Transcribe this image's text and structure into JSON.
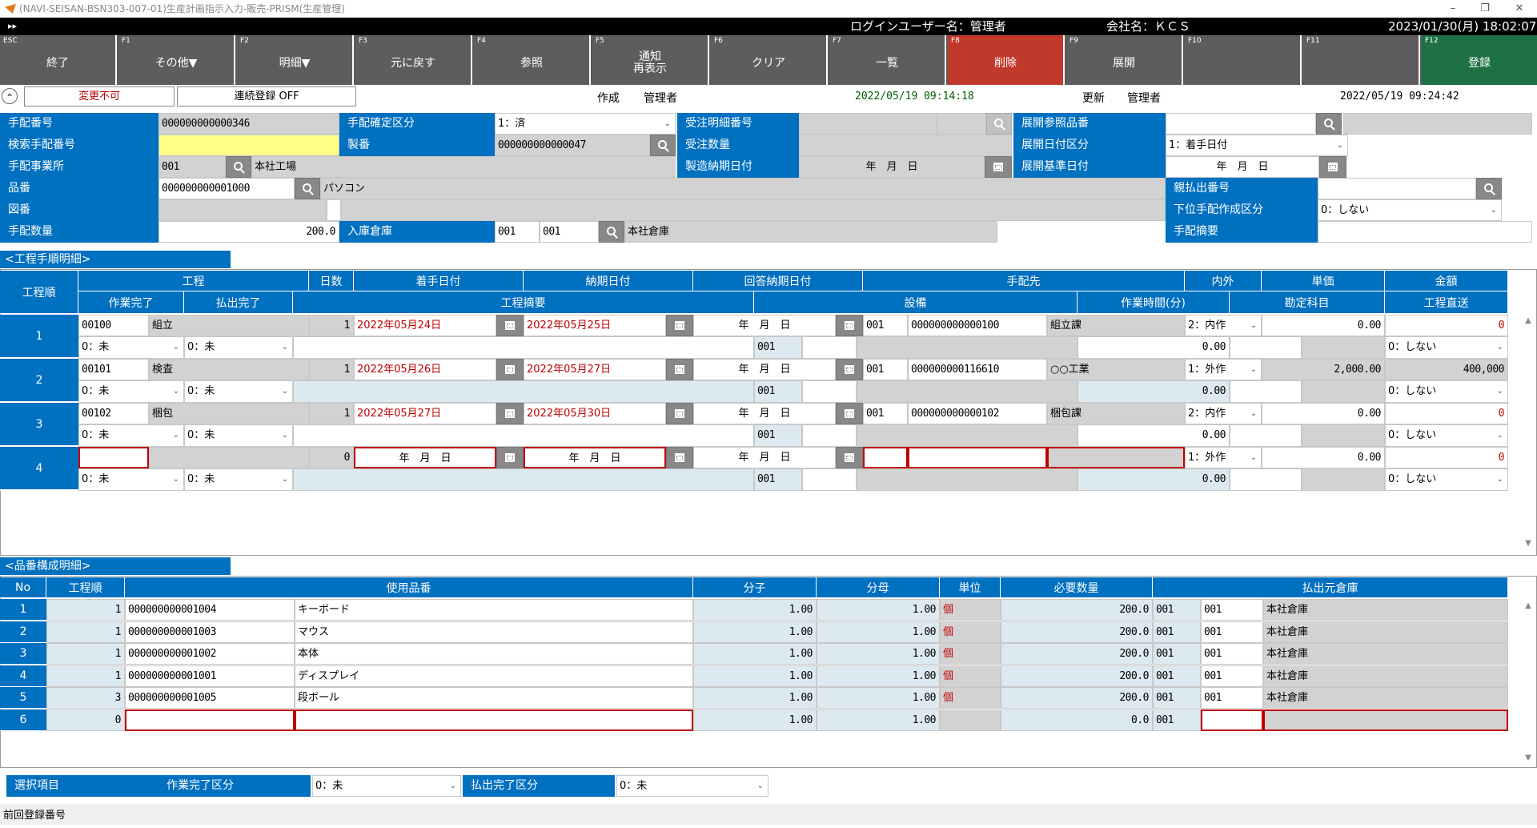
{
  "window": {
    "title": "(NAVI-SEISAN-BSN303-007-01)生産計画指示入力-販売-PRISM(生産管理)",
    "min": "–",
    "max": "❐",
    "close": "✕"
  },
  "infobar": {
    "arrow": "▸▸",
    "login_user": "ログインユーザー名：管理者",
    "company": "会社名：ＫＣＳ",
    "datetime": "2023/01/30(月) 18:02:07"
  },
  "fkeys": [
    {
      "key": "ESC",
      "label": "終了"
    },
    {
      "key": "F1",
      "label": "その他▼"
    },
    {
      "key": "F2",
      "label": "明細▼"
    },
    {
      "key": "F3",
      "label": "元に戻す"
    },
    {
      "key": "F4",
      "label": "参照"
    },
    {
      "key": "F5",
      "label": "通知\n再表示"
    },
    {
      "key": "F6",
      "label": "クリア"
    },
    {
      "key": "F7",
      "label": "一覧"
    },
    {
      "key": "F8",
      "label": "削除"
    },
    {
      "key": "F9",
      "label": "展開"
    },
    {
      "key": "F10",
      "label": ""
    },
    {
      "key": "F11",
      "label": ""
    },
    {
      "key": "F12",
      "label": "登録"
    }
  ],
  "colors": {
    "blue": "#0070c0",
    "delete": "#c0392b",
    "register": "#1e7145",
    "fkey": "#5d5d5d",
    "yellow": "#ffff88"
  },
  "status": {
    "collapse_icon": "⌃",
    "henko": "変更不可",
    "renzoku": "連続登録 OFF",
    "created_label": "作成",
    "created_by": "管理者",
    "created_at": "2022/05/19 09:14:18",
    "updated_label": "更新",
    "updated_by": "管理者",
    "updated_at": "2022/05/19 09:24:42"
  },
  "header": {
    "tehai_no_label": "手配番号",
    "tehai_no": "000000000000346",
    "kakutei_label": "手配確定区分",
    "kakutei": "1：済",
    "juchu_meisai_label": "受注明細番号",
    "juchu_meisai": "",
    "tenkai_sansho_label": "展開参照品番",
    "tenkai_sansho": "",
    "kensaku_label": "検索手配番号",
    "kensaku": "",
    "seiban_label": "製番",
    "seiban": "000000000000047",
    "juchu_su_label": "受注数量",
    "juchu_su": "",
    "tenkai_kubun_label": "展開日付区分",
    "tenkai_kubun": "1：着手日付",
    "jigyosho_label": "手配事業所",
    "jigyosho_code": "001",
    "jigyosho_name": "本社工場",
    "seizo_nouki_label": "製造納期日付",
    "seizo_nouki": "年　月　日",
    "tenkai_kijun_label": "展開基準日付",
    "tenkai_kijun": "年　月　日",
    "hinban_label": "品番",
    "hinban": "000000000001000",
    "hinmei": "パソコン",
    "oya_label": "親払出番号",
    "oya": "",
    "zuban_label": "図番",
    "zuban": "",
    "kai_label": "下位手配作成区分",
    "kai": "0：しない",
    "suryo_label": "手配数量",
    "suryo": "200.0",
    "soko_label": "入庫倉庫",
    "soko_code1": "001",
    "soko_code2": "001",
    "soko_name": "本社倉庫",
    "tekiyo_label": "手配摘要",
    "tekiyo": ""
  },
  "process": {
    "title": "<工程手順明細>",
    "headers": {
      "kojun": "工程順",
      "kotei": "工程",
      "nissu": "日数",
      "chakushu": "着手日付",
      "nouki": "納期日付",
      "kaito": "回答納期日付",
      "tehaisaki": "手配先",
      "naigai": "内外",
      "tanka": "単価",
      "kingaku": "金額",
      "sagyo_kanryo": "作業完了",
      "haraidashi": "払出完了",
      "tekiyo": "工程摘要",
      "setsubi": "設備",
      "sagyo_jikan": "作業時間(分)",
      "kanjo": "勘定科目",
      "chokuso": "工程直送"
    },
    "rows": [
      {
        "no": "1",
        "code": "00100",
        "name": "組立",
        "days": "1",
        "start": "2022年05月24日",
        "end": "2022年05月25日",
        "kaito": "年　月　日",
        "jig": "001",
        "saki": "000000000000100",
        "saki_name": "組立課",
        "naigai": "2：内作",
        "tanka": "0.00",
        "kingaku": "0",
        "sk": "0：未",
        "hk": "0：未",
        "setsubi": "001",
        "jikan": "0.00",
        "chokuso": "0：しない"
      },
      {
        "no": "2",
        "code": "00101",
        "name": "検査",
        "days": "1",
        "start": "2022年05月26日",
        "end": "2022年05月27日",
        "kaito": "年　月　日",
        "jig": "001",
        "saki": "000000000116610",
        "saki_name": "○○工業",
        "naigai": "1：外作",
        "tanka": "2,000.00",
        "kingaku": "400,000",
        "sk": "0：未",
        "hk": "0：未",
        "setsubi": "001",
        "jikan": "0.00",
        "chokuso": "0：しない"
      },
      {
        "no": "3",
        "code": "00102",
        "name": "梱包",
        "days": "1",
        "start": "2022年05月27日",
        "end": "2022年05月30日",
        "kaito": "年　月　日",
        "jig": "001",
        "saki": "000000000000102",
        "saki_name": "梱包課",
        "naigai": "2：内作",
        "tanka": "0.00",
        "kingaku": "0",
        "sk": "0：未",
        "hk": "0：未",
        "setsubi": "001",
        "jikan": "0.00",
        "chokuso": "0：しない"
      },
      {
        "no": "4",
        "code": "",
        "name": "",
        "days": "0",
        "start": "年　月　日",
        "end": "年　月　日",
        "kaito": "年　月　日",
        "jig": "",
        "saki": "",
        "saki_name": "",
        "naigai": "1：外作",
        "tanka": "0.00",
        "kingaku": "0",
        "sk": "0：未",
        "hk": "0：未",
        "setsubi": "001",
        "jikan": "0.00",
        "chokuso": "0：しない"
      }
    ]
  },
  "parts": {
    "title": "<品番構成明細>",
    "headers": {
      "no": "No",
      "kojun": "工程順",
      "hinban": "使用品番",
      "bunshi": "分子",
      "bunbo": "分母",
      "tani": "単位",
      "hitsuyo": "必要数量",
      "soko": "払出元倉庫"
    },
    "rows": [
      {
        "no": "1",
        "kojun": "1",
        "code": "000000000001004",
        "name": "キーボード",
        "bunshi": "1.00",
        "bunbo": "1.00",
        "tani": "個",
        "qty": "200.0",
        "s1": "001",
        "s2": "001",
        "sname": "本社倉庫"
      },
      {
        "no": "2",
        "kojun": "1",
        "code": "000000000001003",
        "name": "マウス",
        "bunshi": "1.00",
        "bunbo": "1.00",
        "tani": "個",
        "qty": "200.0",
        "s1": "001",
        "s2": "001",
        "sname": "本社倉庫"
      },
      {
        "no": "3",
        "kojun": "1",
        "code": "000000000001002",
        "name": "本体",
        "bunshi": "1.00",
        "bunbo": "1.00",
        "tani": "個",
        "qty": "200.0",
        "s1": "001",
        "s2": "001",
        "sname": "本社倉庫"
      },
      {
        "no": "4",
        "kojun": "1",
        "code": "000000000001001",
        "name": "ディスプレイ",
        "bunshi": "1.00",
        "bunbo": "1.00",
        "tani": "個",
        "qty": "200.0",
        "s1": "001",
        "s2": "001",
        "sname": "本社倉庫"
      },
      {
        "no": "5",
        "kojun": "3",
        "code": "000000000001005",
        "name": "段ボール",
        "bunshi": "1.00",
        "bunbo": "1.00",
        "tani": "個",
        "qty": "200.0",
        "s1": "001",
        "s2": "001",
        "sname": "本社倉庫"
      },
      {
        "no": "6",
        "kojun": "0",
        "code": "",
        "name": "",
        "bunshi": "1.00",
        "bunbo": "1.00",
        "tani": "",
        "qty": "0.0",
        "s1": "001",
        "s2": "",
        "sname": ""
      }
    ]
  },
  "footer": {
    "sentaku_label": "選択項目",
    "sagyo_label": "作業完了区分",
    "sagyo": "0：未",
    "harai_label": "払出完了区分",
    "harai": "0：未",
    "prev_label": "前回登録番号"
  }
}
